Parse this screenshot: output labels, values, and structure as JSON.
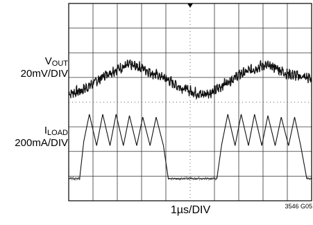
{
  "chart_data": {
    "type": "line",
    "x_axis": {
      "label": "1µs/DIV",
      "divisions": 10,
      "range_us": [
        0,
        10
      ]
    },
    "y_axis": {
      "divisions": 8
    },
    "grid": true,
    "traces": [
      {
        "name": "VOUT",
        "label_main": "V",
        "label_sub": "OUT",
        "scale": "20mV/DIV",
        "points": [
          [
            0.0,
            -0.15
          ],
          [
            0.5,
            -0.05
          ],
          [
            1.0,
            0.25
          ],
          [
            1.5,
            0.6
          ],
          [
            2.0,
            0.85
          ],
          [
            2.5,
            1.0
          ],
          [
            3.0,
            0.9
          ],
          [
            3.5,
            0.65
          ],
          [
            4.0,
            0.45
          ],
          [
            4.5,
            0.15
          ],
          [
            5.0,
            -0.05
          ],
          [
            5.5,
            -0.2
          ],
          [
            6.0,
            -0.05
          ],
          [
            6.5,
            0.3
          ],
          [
            7.0,
            0.6
          ],
          [
            7.5,
            0.8
          ],
          [
            8.0,
            1.0
          ],
          [
            8.5,
            0.9
          ],
          [
            9.0,
            0.65
          ],
          [
            9.5,
            0.55
          ],
          [
            10.0,
            0.45
          ]
        ]
      },
      {
        "name": "ILOAD",
        "label_main": "I",
        "label_sub": "LOAD",
        "scale": "200mA/DIV",
        "points": [
          [
            0.0,
            0
          ],
          [
            0.45,
            0
          ],
          [
            0.62,
            2.6
          ],
          [
            0.85,
            4.5
          ],
          [
            1.15,
            2.3
          ],
          [
            1.4,
            4.5
          ],
          [
            1.7,
            2.3
          ],
          [
            1.95,
            4.5
          ],
          [
            2.25,
            2.3
          ],
          [
            2.5,
            4.4
          ],
          [
            2.8,
            2.3
          ],
          [
            3.05,
            4.3
          ],
          [
            3.35,
            2.3
          ],
          [
            3.6,
            4.3
          ],
          [
            3.9,
            2.3
          ],
          [
            4.1,
            0
          ],
          [
            6.1,
            0
          ],
          [
            6.3,
            2.4
          ],
          [
            6.55,
            4.5
          ],
          [
            6.85,
            2.3
          ],
          [
            7.1,
            4.5
          ],
          [
            7.4,
            2.3
          ],
          [
            7.65,
            4.5
          ],
          [
            7.95,
            2.3
          ],
          [
            8.2,
            4.4
          ],
          [
            8.5,
            2.3
          ],
          [
            8.75,
            4.3
          ],
          [
            9.05,
            2.3
          ],
          [
            9.3,
            4.3
          ],
          [
            9.55,
            2.3
          ],
          [
            9.8,
            0
          ],
          [
            10.0,
            0
          ]
        ]
      }
    ],
    "footnote": "3546 G05"
  }
}
